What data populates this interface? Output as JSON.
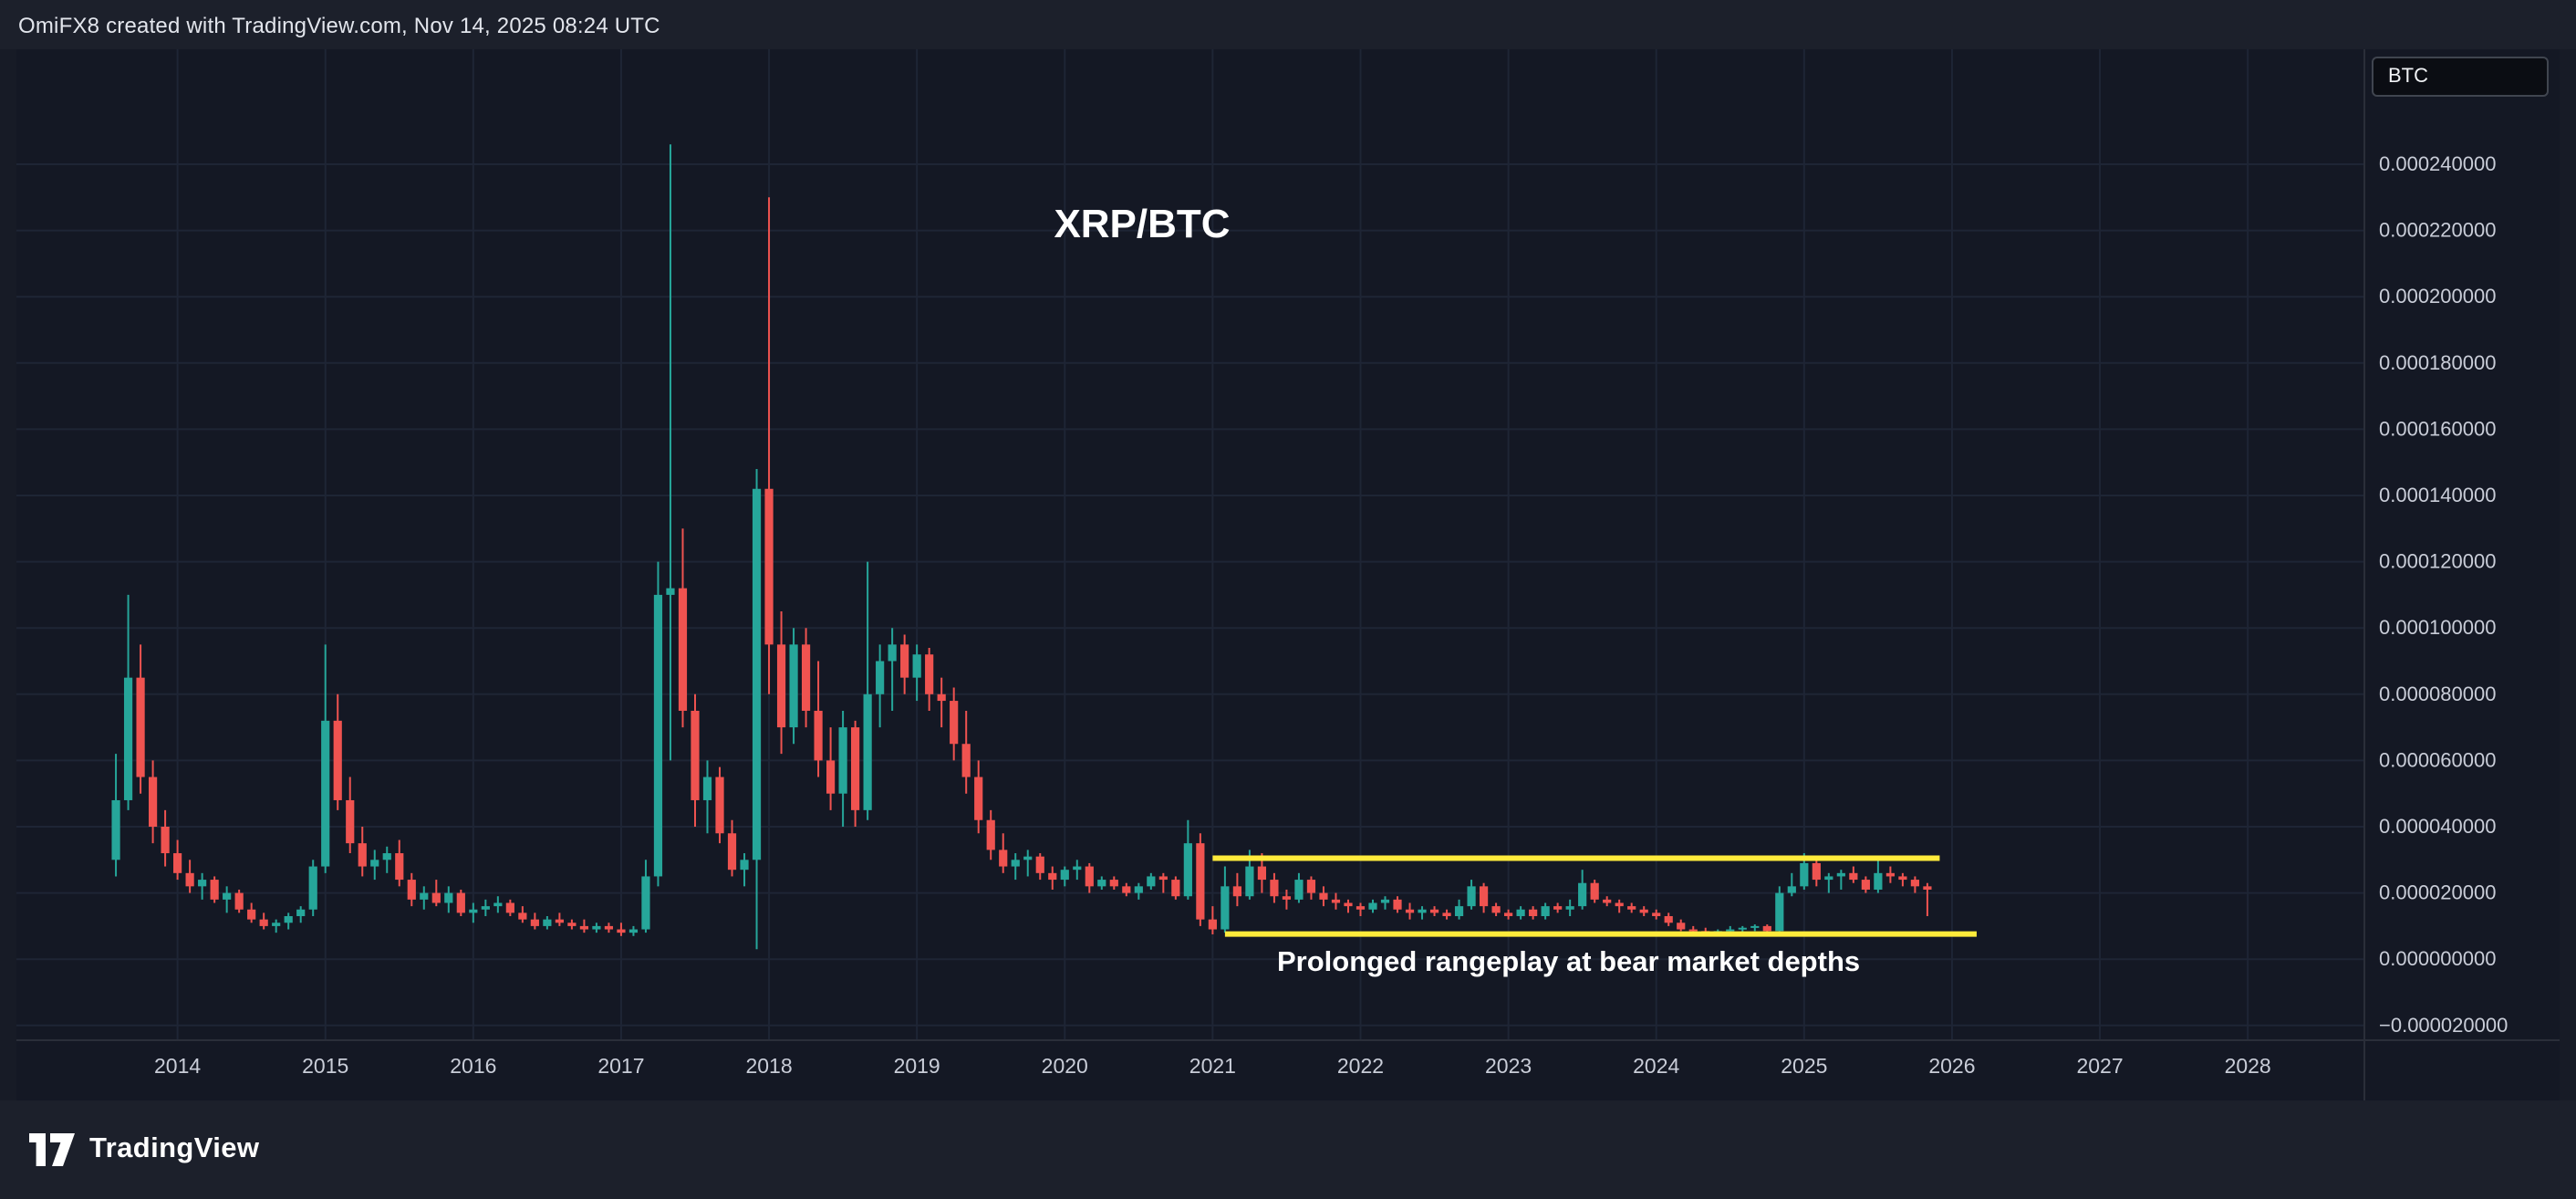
{
  "header": {
    "credit": "OmiFX8 created with TradingView.com, Nov 14, 2025 08:24 UTC"
  },
  "annotations": {
    "pair_title": "XRP/BTC",
    "range_note": "Prolonged rangeplay at bear market depths"
  },
  "price_axis": {
    "currency_label": "BTC",
    "ticks": [
      {
        "label": "0.000240000",
        "value": 240
      },
      {
        "label": "0.000220000",
        "value": 220
      },
      {
        "label": "0.000200000",
        "value": 200
      },
      {
        "label": "0.000180000",
        "value": 180
      },
      {
        "label": "0.000160000",
        "value": 160
      },
      {
        "label": "0.000140000",
        "value": 140
      },
      {
        "label": "0.000120000",
        "value": 120
      },
      {
        "label": "0.000100000",
        "value": 100
      },
      {
        "label": "0.000080000",
        "value": 80
      },
      {
        "label": "0.000060000",
        "value": 60
      },
      {
        "label": "0.000040000",
        "value": 40
      },
      {
        "label": "0.000020000",
        "value": 20
      },
      {
        "label": "0.000000000",
        "value": 0
      },
      {
        "label": "−0.000020000",
        "value": -20
      }
    ]
  },
  "time_axis": {
    "years": [
      "2014",
      "2015",
      "2016",
      "2017",
      "2018",
      "2019",
      "2020",
      "2021",
      "2022",
      "2023",
      "2024",
      "2025",
      "2026",
      "2027",
      "2028"
    ]
  },
  "footer": {
    "brand": "TradingView"
  },
  "colors": {
    "up": "#26a69a",
    "down": "#ef5350",
    "range_line": "#ffeb3b",
    "grid": "#1e2535",
    "axis_text": "#c9cdd8",
    "pane_bg": "#141824",
    "band_bg": "#1c202b",
    "page_bg": "#171b26",
    "separator": "#2a2e39",
    "annotation_text": "#ffffff"
  },
  "chart_data": {
    "type": "candlestick",
    "symbol": "XRP/BTC",
    "interval": "1M",
    "price_unit": "BTC",
    "value_scale": 1e-06,
    "note": "o/h/l/c values below are in units of 1e-6 BTC (multiply by value_scale for BTC)",
    "ylim_btc": [
      -2.45e-05,
      0.000275
    ],
    "visible_range": [
      "2012-12",
      "2028-10"
    ],
    "ytick_step_btc": 2e-05,
    "candles": [
      [
        "2013-08",
        30,
        62,
        25,
        48
      ],
      [
        "2013-09",
        48,
        110,
        45,
        85
      ],
      [
        "2013-10",
        85,
        95,
        50,
        55
      ],
      [
        "2013-11",
        55,
        60,
        35,
        40
      ],
      [
        "2013-12",
        40,
        45,
        28,
        32
      ],
      [
        "2014-01",
        32,
        36,
        24,
        26
      ],
      [
        "2014-02",
        26,
        30,
        20,
        22
      ],
      [
        "2014-03",
        22,
        26,
        18,
        24
      ],
      [
        "2014-04",
        24,
        25,
        17,
        18
      ],
      [
        "2014-05",
        18,
        22,
        14,
        20
      ],
      [
        "2014-06",
        20,
        21,
        14,
        15
      ],
      [
        "2014-07",
        15,
        17,
        11,
        12
      ],
      [
        "2014-08",
        12,
        14,
        9,
        10
      ],
      [
        "2014-09",
        10,
        12,
        8,
        11
      ],
      [
        "2014-10",
        11,
        14,
        9,
        13
      ],
      [
        "2014-11",
        13,
        16,
        11,
        15
      ],
      [
        "2014-12",
        15,
        30,
        13,
        28
      ],
      [
        "2015-01",
        28,
        95,
        26,
        72
      ],
      [
        "2015-02",
        72,
        80,
        45,
        48
      ],
      [
        "2015-03",
        48,
        55,
        32,
        35
      ],
      [
        "2015-04",
        35,
        40,
        25,
        28
      ],
      [
        "2015-05",
        28,
        33,
        24,
        30
      ],
      [
        "2015-06",
        30,
        34,
        26,
        32
      ],
      [
        "2015-07",
        32,
        36,
        22,
        24
      ],
      [
        "2015-08",
        24,
        26,
        16,
        18
      ],
      [
        "2015-09",
        18,
        22,
        15,
        20
      ],
      [
        "2015-10",
        20,
        24,
        16,
        17
      ],
      [
        "2015-11",
        17,
        22,
        14,
        20
      ],
      [
        "2015-12",
        20,
        21,
        13,
        14
      ],
      [
        "2016-01",
        14,
        17,
        11,
        15
      ],
      [
        "2016-02",
        15,
        18,
        13,
        16
      ],
      [
        "2016-03",
        16,
        19,
        14,
        17
      ],
      [
        "2016-04",
        17,
        18,
        13,
        14
      ],
      [
        "2016-05",
        14,
        16,
        11,
        12
      ],
      [
        "2016-06",
        12,
        14,
        9,
        10
      ],
      [
        "2016-07",
        10,
        13,
        9,
        12
      ],
      [
        "2016-08",
        12,
        14,
        10,
        11
      ],
      [
        "2016-09",
        11,
        12,
        9,
        10
      ],
      [
        "2016-10",
        10,
        12,
        8,
        9
      ],
      [
        "2016-11",
        9,
        11,
        8,
        10
      ],
      [
        "2016-12",
        10,
        11,
        8,
        9
      ],
      [
        "2017-01",
        9,
        11,
        7,
        8
      ],
      [
        "2017-02",
        8,
        10,
        7,
        9
      ],
      [
        "2017-03",
        9,
        30,
        8,
        25
      ],
      [
        "2017-04",
        25,
        120,
        22,
        110
      ],
      [
        "2017-05",
        110,
        246,
        60,
        112
      ],
      [
        "2017-06",
        112,
        130,
        70,
        75
      ],
      [
        "2017-07",
        75,
        80,
        40,
        48
      ],
      [
        "2017-08",
        48,
        60,
        38,
        55
      ],
      [
        "2017-09",
        55,
        58,
        35,
        38
      ],
      [
        "2017-10",
        38,
        42,
        25,
        27
      ],
      [
        "2017-11",
        27,
        32,
        22,
        30
      ],
      [
        "2017-12",
        30,
        148,
        3,
        142
      ],
      [
        "2018-01",
        142,
        230,
        80,
        95
      ],
      [
        "2018-02",
        95,
        105,
        62,
        70
      ],
      [
        "2018-03",
        70,
        100,
        65,
        95
      ],
      [
        "2018-04",
        95,
        100,
        70,
        75
      ],
      [
        "2018-05",
        75,
        90,
        55,
        60
      ],
      [
        "2018-06",
        60,
        70,
        45,
        50
      ],
      [
        "2018-07",
        50,
        75,
        40,
        70
      ],
      [
        "2018-08",
        70,
        72,
        40,
        45
      ],
      [
        "2018-09",
        45,
        120,
        42,
        80
      ],
      [
        "2018-10",
        80,
        95,
        70,
        90
      ],
      [
        "2018-11",
        90,
        100,
        75,
        95
      ],
      [
        "2018-12",
        95,
        98,
        80,
        85
      ],
      [
        "2019-01",
        85,
        95,
        78,
        92
      ],
      [
        "2019-02",
        92,
        94,
        75,
        80
      ],
      [
        "2019-03",
        80,
        85,
        70,
        78
      ],
      [
        "2019-04",
        78,
        82,
        60,
        65
      ],
      [
        "2019-05",
        65,
        75,
        50,
        55
      ],
      [
        "2019-06",
        55,
        60,
        38,
        42
      ],
      [
        "2019-07",
        42,
        45,
        30,
        33
      ],
      [
        "2019-08",
        33,
        38,
        26,
        28
      ],
      [
        "2019-09",
        28,
        32,
        24,
        30
      ],
      [
        "2019-10",
        30,
        33,
        25,
        31
      ],
      [
        "2019-11",
        31,
        32,
        24,
        26
      ],
      [
        "2019-12",
        26,
        28,
        21,
        24
      ],
      [
        "2020-01",
        24,
        28,
        22,
        27
      ],
      [
        "2020-02",
        27,
        30,
        24,
        28
      ],
      [
        "2020-03",
        28,
        29,
        20,
        22
      ],
      [
        "2020-04",
        22,
        25,
        21,
        24
      ],
      [
        "2020-05",
        24,
        25,
        21,
        22
      ],
      [
        "2020-06",
        22,
        23,
        19,
        20
      ],
      [
        "2020-07",
        20,
        23,
        18,
        22
      ],
      [
        "2020-08",
        22,
        26,
        21,
        25
      ],
      [
        "2020-09",
        25,
        26,
        20,
        24
      ],
      [
        "2020-10",
        24,
        25,
        18,
        19
      ],
      [
        "2020-11",
        19,
        42,
        18,
        35
      ],
      [
        "2020-12",
        35,
        38,
        10,
        12
      ],
      [
        "2021-01",
        12,
        16,
        7.5,
        9
      ],
      [
        "2021-02",
        9,
        28,
        8,
        22
      ],
      [
        "2021-03",
        22,
        26,
        16,
        19
      ],
      [
        "2021-04",
        19,
        33,
        18,
        28
      ],
      [
        "2021-05",
        28,
        32,
        20,
        24
      ],
      [
        "2021-06",
        24,
        26,
        17,
        19
      ],
      [
        "2021-07",
        19,
        21,
        15,
        18
      ],
      [
        "2021-08",
        18,
        26,
        17,
        24
      ],
      [
        "2021-09",
        24,
        25,
        18,
        20
      ],
      [
        "2021-10",
        20,
        22,
        16,
        18
      ],
      [
        "2021-11",
        18,
        20,
        15,
        17
      ],
      [
        "2021-12",
        17,
        18,
        14,
        16
      ],
      [
        "2022-01",
        16,
        17,
        13,
        15
      ],
      [
        "2022-02",
        15,
        18,
        14,
        17
      ],
      [
        "2022-03",
        17,
        19,
        15,
        18
      ],
      [
        "2022-04",
        18,
        19,
        14,
        15
      ],
      [
        "2022-05",
        15,
        17,
        12,
        14
      ],
      [
        "2022-06",
        14,
        16,
        12,
        15
      ],
      [
        "2022-07",
        15,
        16,
        13,
        14
      ],
      [
        "2022-08",
        14,
        15,
        12,
        13
      ],
      [
        "2022-09",
        13,
        18,
        12,
        16
      ],
      [
        "2022-10",
        16,
        24,
        15,
        22
      ],
      [
        "2022-11",
        22,
        23,
        14,
        16
      ],
      [
        "2022-12",
        16,
        17,
        13,
        14
      ],
      [
        "2023-01",
        14,
        15,
        12,
        13
      ],
      [
        "2023-02",
        13,
        16,
        12,
        15
      ],
      [
        "2023-03",
        15,
        16,
        12,
        13
      ],
      [
        "2023-04",
        13,
        17,
        12,
        16
      ],
      [
        "2023-05",
        16,
        17,
        14,
        15
      ],
      [
        "2023-06",
        15,
        18,
        13,
        16
      ],
      [
        "2023-07",
        16,
        27,
        15,
        23
      ],
      [
        "2023-08",
        23,
        24,
        17,
        18
      ],
      [
        "2023-09",
        18,
        19,
        16,
        17
      ],
      [
        "2023-10",
        17,
        18,
        14,
        16
      ],
      [
        "2023-11",
        16,
        17,
        14,
        15
      ],
      [
        "2023-12",
        15,
        16,
        13,
        14
      ],
      [
        "2024-01",
        14,
        15,
        12,
        13
      ],
      [
        "2024-02",
        13,
        14,
        10,
        11
      ],
      [
        "2024-03",
        11,
        12,
        8.5,
        9
      ],
      [
        "2024-04",
        9,
        10,
        8,
        8.5
      ],
      [
        "2024-05",
        8.5,
        9.5,
        7.5,
        8
      ],
      [
        "2024-06",
        8,
        9,
        7.5,
        8.5
      ],
      [
        "2024-07",
        8.5,
        10,
        8,
        9
      ],
      [
        "2024-08",
        9,
        10,
        8,
        9.5
      ],
      [
        "2024-09",
        9.5,
        10.5,
        8.5,
        10
      ],
      [
        "2024-10",
        10,
        10.5,
        8,
        8.5
      ],
      [
        "2024-11",
        8.5,
        22,
        8,
        20
      ],
      [
        "2024-12",
        20,
        26,
        19,
        22
      ],
      [
        "2025-01",
        22,
        32,
        21,
        29
      ],
      [
        "2025-02",
        29,
        31,
        22,
        24
      ],
      [
        "2025-03",
        24,
        26,
        20,
        25
      ],
      [
        "2025-04",
        25,
        27,
        21,
        26
      ],
      [
        "2025-05",
        26,
        28,
        23,
        24
      ],
      [
        "2025-06",
        24,
        25,
        20,
        21
      ],
      [
        "2025-07",
        21,
        30,
        20,
        26
      ],
      [
        "2025-08",
        26,
        28,
        23,
        25
      ],
      [
        "2025-09",
        25,
        26,
        22,
        24
      ],
      [
        "2025-10",
        24,
        25,
        20,
        22
      ],
      [
        "2025-11",
        22,
        23,
        13,
        21
      ]
    ],
    "range_lines": [
      {
        "name": "range-top-line",
        "value": 30.5,
        "from": "2021-01",
        "to": "2025-12"
      },
      {
        "name": "range-bottom-line",
        "value": 7.6,
        "from": "2021-02",
        "to": "2026-03"
      }
    ]
  }
}
